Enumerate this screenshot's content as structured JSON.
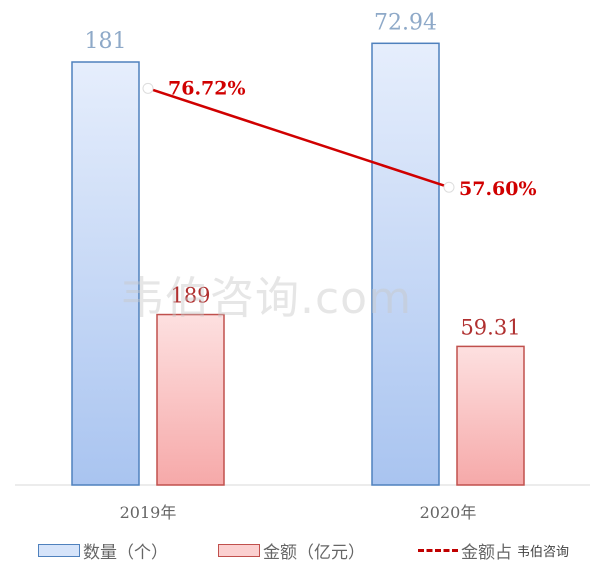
{
  "chart_data": {
    "type": "bar+line",
    "categories": [
      "2019年",
      "2020年"
    ],
    "series": [
      {
        "name": "数量（个）",
        "type": "bar",
        "values": [
          181,
          189
        ],
        "color": "#4f81bd",
        "fill": "#dce8fb"
      },
      {
        "name": "金额（亿元）",
        "type": "bar",
        "values": [
          72.94,
          59.31
        ],
        "color": "#c0504d",
        "fill": "#fcd5d5"
      },
      {
        "name": "金额占",
        "type": "line",
        "values": [
          76.72,
          57.6
        ],
        "labels": [
          "76.72%",
          "57.60%"
        ],
        "color": "#d00000"
      }
    ],
    "bar_labels": [
      "181",
      "189",
      "72.94",
      "59.31"
    ],
    "grid": false,
    "legend": "bottom"
  },
  "watermark": "韦伯咨询.com",
  "legend_watermark": "韦伯咨询"
}
